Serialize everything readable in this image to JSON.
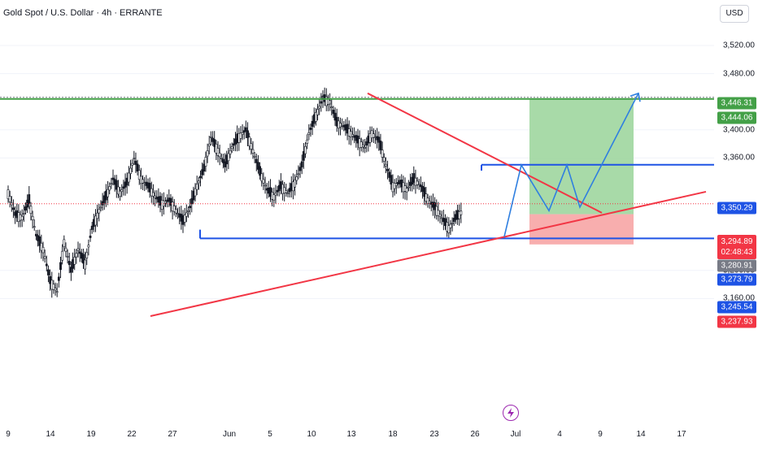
{
  "title": "Gold Spot / U.S. Dollar · 4h · ERRANTE",
  "currency_label": "USD",
  "colors": {
    "up": "#26a69a",
    "down": "#131722",
    "candle": "#131722",
    "support_line": "#1e53e5",
    "trend_red": "#f23645",
    "target_green": "#43a047",
    "profit_zone": "#9fd69f",
    "loss_zone": "#f7a5a5",
    "projection": "#2f7fe0"
  },
  "chart_data": {
    "type": "candlestick",
    "symbol": "Gold Spot / U.S. Dollar",
    "interval": "4h",
    "broker": "ERRANTE",
    "ylim": [
      3140,
      3560
    ],
    "y_ticks": [
      "3,520.00",
      "3,480.00",
      "3,400.00",
      "3,360.00",
      "3,200.00",
      "3,160.00"
    ],
    "x_ticks": [
      "9",
      "14",
      "19",
      "22",
      "27",
      "Jun",
      "5",
      "10",
      "13",
      "18",
      "23",
      "26",
      "Jul",
      "4",
      "9",
      "14",
      "17"
    ],
    "x_tick_index": [
      0,
      6,
      12,
      18,
      24,
      32,
      40,
      46,
      52,
      58,
      64,
      70,
      76,
      82,
      88,
      94,
      100
    ],
    "price_labels": [
      {
        "value": "3,446.31",
        "color": "#43a047"
      },
      {
        "value": "3,444.06",
        "color": "#43a047"
      },
      {
        "value": "3,350.29",
        "color": "#1e53e5"
      },
      {
        "value": "3,294.89",
        "sub": "02:48:43",
        "color": "#f23645"
      },
      {
        "value": "3,280.91",
        "color": "#787b86"
      },
      {
        "value": "3,273.79",
        "color": "#1e53e5"
      },
      {
        "value": "3,245.54",
        "color": "#1e53e5"
      },
      {
        "value": "3,237.93",
        "color": "#f23645"
      }
    ],
    "close_path": [
      [
        0,
        3310
      ],
      [
        1,
        3280
      ],
      [
        2,
        3275
      ],
      [
        3,
        3300
      ],
      [
        4,
        3250
      ],
      [
        5,
        3230
      ],
      [
        6,
        3185
      ],
      [
        7,
        3170
      ],
      [
        8,
        3240
      ],
      [
        9,
        3200
      ],
      [
        10,
        3230
      ],
      [
        11,
        3210
      ],
      [
        12,
        3260
      ],
      [
        13,
        3285
      ],
      [
        14,
        3305
      ],
      [
        15,
        3330
      ],
      [
        16,
        3310
      ],
      [
        17,
        3325
      ],
      [
        18,
        3360
      ],
      [
        19,
        3330
      ],
      [
        20,
        3320
      ],
      [
        21,
        3305
      ],
      [
        22,
        3295
      ],
      [
        23,
        3300
      ],
      [
        24,
        3285
      ],
      [
        25,
        3270
      ],
      [
        26,
        3290
      ],
      [
        27,
        3320
      ],
      [
        28,
        3345
      ],
      [
        29,
        3390
      ],
      [
        30,
        3370
      ],
      [
        31,
        3350
      ],
      [
        32,
        3375
      ],
      [
        33,
        3390
      ],
      [
        34,
        3400
      ],
      [
        35,
        3370
      ],
      [
        36,
        3340
      ],
      [
        37,
        3315
      ],
      [
        38,
        3305
      ],
      [
        39,
        3320
      ],
      [
        40,
        3310
      ],
      [
        41,
        3325
      ],
      [
        42,
        3350
      ],
      [
        43,
        3395
      ],
      [
        44,
        3420
      ],
      [
        45,
        3445
      ],
      [
        46,
        3440
      ],
      [
        47,
        3410
      ],
      [
        48,
        3405
      ],
      [
        49,
        3395
      ],
      [
        50,
        3385
      ],
      [
        51,
        3375
      ],
      [
        52,
        3395
      ],
      [
        53,
        3385
      ],
      [
        54,
        3350
      ],
      [
        55,
        3320
      ],
      [
        56,
        3325
      ],
      [
        57,
        3315
      ],
      [
        58,
        3330
      ],
      [
        59,
        3320
      ],
      [
        60,
        3300
      ],
      [
        61,
        3290
      ],
      [
        62,
        3275
      ],
      [
        63,
        3260
      ],
      [
        64,
        3275
      ],
      [
        65,
        3285
      ]
    ]
  }
}
